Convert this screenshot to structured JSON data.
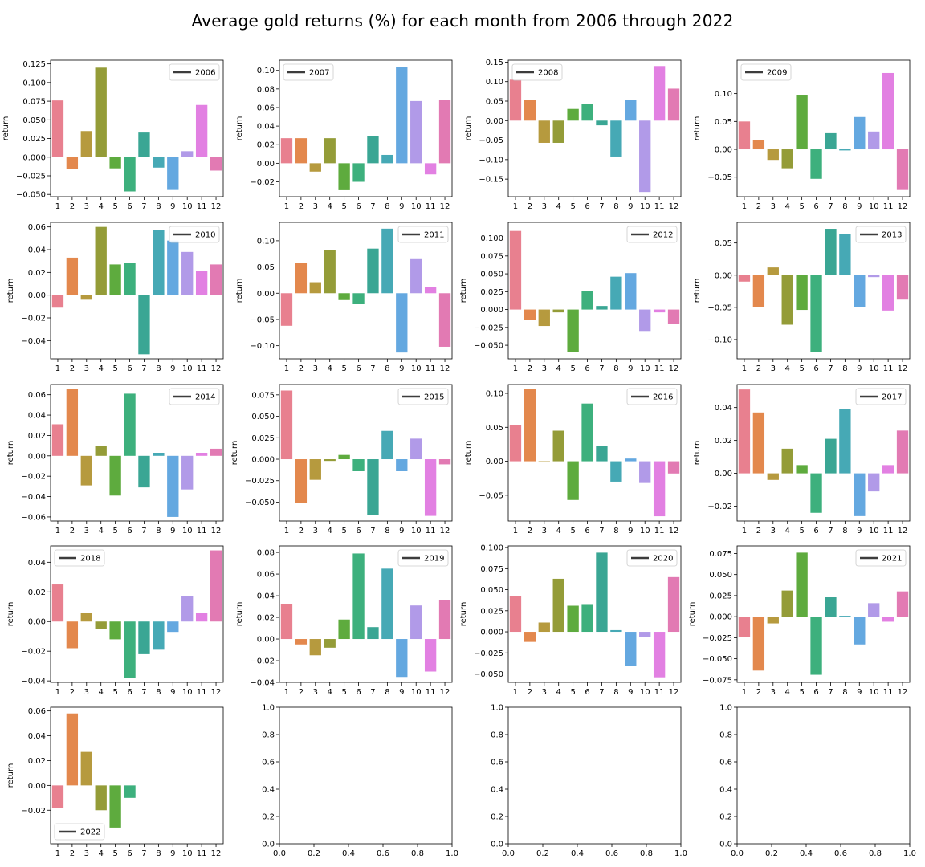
{
  "title": "Average gold returns (%) for each month from 2006 through 2022",
  "ylabel": "return",
  "months": [
    "1",
    "2",
    "3",
    "4",
    "5",
    "6",
    "7",
    "8",
    "9",
    "10",
    "11",
    "12"
  ],
  "colors": [
    "#e8808f",
    "#e3884d",
    "#b69a3e",
    "#949c38",
    "#5eab3e",
    "#3db07d",
    "#3aa694",
    "#46a9b5",
    "#64a8e0",
    "#b19ae8",
    "#e280e2",
    "#e27ab3"
  ],
  "chart_data": [
    {
      "type": "bar",
      "legend": "2006",
      "legend_loc": "upper right",
      "ylim": [
        -0.053,
        0.13
      ],
      "yticks": [
        -0.05,
        -0.025,
        0,
        0.025,
        0.05,
        0.075,
        0.1,
        0.125
      ],
      "ytick_labels": [
        "−0.050",
        "−0.025",
        "0.000",
        "0.025",
        "0.050",
        "0.075",
        "0.100",
        "0.125"
      ],
      "values": [
        0.076,
        -0.016,
        0.035,
        0.12,
        -0.015,
        -0.046,
        0.033,
        -0.014,
        -0.044,
        0.008,
        0.07,
        -0.018
      ]
    },
    {
      "type": "bar",
      "legend": "2007",
      "legend_loc": "upper left",
      "ylim": [
        -0.036,
        0.111
      ],
      "yticks": [
        -0.02,
        0,
        0.02,
        0.04,
        0.06,
        0.08,
        0.1
      ],
      "ytick_labels": [
        "−0.02",
        "0.00",
        "0.02",
        "0.04",
        "0.06",
        "0.08",
        "0.10"
      ],
      "values": [
        0.027,
        0.027,
        -0.009,
        0.027,
        -0.029,
        -0.02,
        0.029,
        0.009,
        0.104,
        0.067,
        -0.012,
        0.068
      ]
    },
    {
      "type": "bar",
      "legend": "2008",
      "legend_loc": "upper left",
      "ylim": [
        -0.195,
        0.155
      ],
      "yticks": [
        -0.15,
        -0.1,
        -0.05,
        0,
        0.05,
        0.1,
        0.15
      ],
      "ytick_labels": [
        "−0.15",
        "−0.10",
        "−0.05",
        "0.00",
        "0.05",
        "0.10",
        "0.15"
      ],
      "values": [
        0.105,
        0.053,
        -0.057,
        -0.057,
        0.03,
        0.042,
        -0.012,
        -0.092,
        0.053,
        -0.183,
        0.14,
        0.082
      ]
    },
    {
      "type": "bar",
      "legend": "2009",
      "legend_loc": "upper left",
      "ylim": [
        -0.085,
        0.16
      ],
      "yticks": [
        -0.05,
        0,
        0.05,
        0.1
      ],
      "ytick_labels": [
        "−0.05",
        "0.00",
        "0.05",
        "0.10"
      ],
      "values": [
        0.05,
        0.016,
        -0.019,
        -0.034,
        0.098,
        -0.053,
        0.029,
        -0.002,
        0.058,
        0.032,
        0.137,
        -0.073
      ]
    },
    {
      "type": "bar",
      "legend": "2010",
      "legend_loc": "upper right",
      "ylim": [
        -0.056,
        0.064
      ],
      "yticks": [
        -0.04,
        -0.02,
        0,
        0.02,
        0.04,
        0.06
      ],
      "ytick_labels": [
        "−0.04",
        "−0.02",
        "0.00",
        "0.02",
        "0.04",
        "0.06"
      ],
      "values": [
        -0.011,
        0.033,
        -0.004,
        0.06,
        0.027,
        0.028,
        -0.052,
        0.057,
        0.048,
        0.038,
        0.021,
        0.027
      ]
    },
    {
      "type": "bar",
      "legend": "2011",
      "legend_loc": "upper right",
      "ylim": [
        -0.125,
        0.135
      ],
      "yticks": [
        -0.1,
        -0.05,
        0,
        0.05,
        0.1
      ],
      "ytick_labels": [
        "−0.10",
        "−0.05",
        "0.00",
        "0.05",
        "0.10"
      ],
      "values": [
        -0.062,
        0.058,
        0.021,
        0.082,
        -0.013,
        -0.021,
        0.085,
        0.123,
        -0.113,
        0.065,
        0.012,
        -0.102
      ]
    },
    {
      "type": "bar",
      "legend": "2012",
      "legend_loc": "upper right",
      "ylim": [
        -0.069,
        0.122
      ],
      "yticks": [
        -0.05,
        -0.025,
        0,
        0.025,
        0.05,
        0.075,
        0.1
      ],
      "ytick_labels": [
        "−0.050",
        "−0.025",
        "0.000",
        "0.025",
        "0.050",
        "0.075",
        "0.100"
      ],
      "values": [
        0.11,
        -0.015,
        -0.023,
        -0.004,
        -0.06,
        0.026,
        0.005,
        0.046,
        0.051,
        -0.03,
        -0.004,
        -0.02
      ]
    },
    {
      "type": "bar",
      "legend": "2013",
      "legend_loc": "upper right",
      "ylim": [
        -0.13,
        0.082
      ],
      "yticks": [
        -0.1,
        -0.05,
        0,
        0.05
      ],
      "ytick_labels": [
        "−0.10",
        "−0.05",
        "0.00",
        "0.05"
      ],
      "values": [
        -0.01,
        -0.05,
        0.012,
        -0.077,
        -0.054,
        -0.12,
        0.072,
        0.064,
        -0.05,
        -0.003,
        -0.055,
        -0.038
      ]
    },
    {
      "type": "bar",
      "legend": "2014",
      "legend_loc": "upper right",
      "ylim": [
        -0.064,
        0.07
      ],
      "yticks": [
        -0.06,
        -0.04,
        -0.02,
        0,
        0.02,
        0.04,
        0.06
      ],
      "ytick_labels": [
        "−0.06",
        "−0.04",
        "−0.02",
        "0.00",
        "0.02",
        "0.04",
        "0.06"
      ],
      "values": [
        0.031,
        0.066,
        -0.029,
        0.01,
        -0.039,
        0.061,
        -0.031,
        0.003,
        -0.06,
        -0.033,
        0.003,
        0.007
      ]
    },
    {
      "type": "bar",
      "legend": "2015",
      "legend_loc": "upper right",
      "ylim": [
        -0.072,
        0.087
      ],
      "yticks": [
        -0.05,
        -0.025,
        0,
        0.025,
        0.05,
        0.075
      ],
      "ytick_labels": [
        "−0.050",
        "−0.025",
        "0.000",
        "0.025",
        "0.050",
        "0.075"
      ],
      "values": [
        0.08,
        -0.051,
        -0.024,
        -0.002,
        0.005,
        -0.014,
        -0.065,
        0.033,
        -0.014,
        0.024,
        -0.066,
        -0.006
      ]
    },
    {
      "type": "bar",
      "legend": "2016",
      "legend_loc": "upper right",
      "ylim": [
        -0.088,
        0.113
      ],
      "yticks": [
        -0.05,
        0,
        0.05,
        0.1
      ],
      "ytick_labels": [
        "−0.05",
        "0.00",
        "0.05",
        "0.10"
      ],
      "values": [
        0.053,
        0.106,
        0,
        0.045,
        -0.057,
        0.085,
        0.023,
        -0.03,
        0.004,
        -0.032,
        -0.081,
        -0.018
      ]
    },
    {
      "type": "bar",
      "legend": "2017",
      "legend_loc": "upper right",
      "ylim": [
        -0.029,
        0.054
      ],
      "yticks": [
        -0.02,
        0,
        0.02,
        0.04
      ],
      "ytick_labels": [
        "−0.02",
        "0.00",
        "0.02",
        "0.04"
      ],
      "values": [
        0.051,
        0.037,
        -0.004,
        0.015,
        0.005,
        -0.024,
        0.021,
        0.039,
        -0.026,
        -0.011,
        0.005,
        0.026
      ]
    },
    {
      "type": "bar",
      "legend": "2018",
      "legend_loc": "upper left",
      "ylim": [
        -0.041,
        0.051
      ],
      "yticks": [
        -0.04,
        -0.02,
        0,
        0.02,
        0.04
      ],
      "ytick_labels": [
        "−0.04",
        "−0.02",
        "0.00",
        "0.02",
        "0.04"
      ],
      "values": [
        0.025,
        -0.018,
        0.006,
        -0.005,
        -0.012,
        -0.038,
        -0.022,
        -0.019,
        -0.007,
        0.017,
        0.006,
        0.048
      ]
    },
    {
      "type": "bar",
      "legend": "2019",
      "legend_loc": "upper right",
      "ylim": [
        -0.04,
        0.086
      ],
      "yticks": [
        -0.04,
        -0.02,
        0,
        0.02,
        0.04,
        0.06,
        0.08
      ],
      "ytick_labels": [
        "−0.04",
        "−0.02",
        "0.00",
        "0.02",
        "0.04",
        "0.06",
        "0.08"
      ],
      "values": [
        0.032,
        -0.005,
        -0.015,
        -0.008,
        0.018,
        0.079,
        0.011,
        0.065,
        -0.035,
        0.031,
        -0.03,
        0.036
      ]
    },
    {
      "type": "bar",
      "legend": "2020",
      "legend_loc": "upper right",
      "ylim": [
        -0.06,
        0.102
      ],
      "yticks": [
        -0.05,
        -0.025,
        0,
        0.025,
        0.05,
        0.075,
        0.1
      ],
      "ytick_labels": [
        "−0.050",
        "−0.025",
        "0.000",
        "0.025",
        "0.050",
        "0.075",
        "0.100"
      ],
      "values": [
        0.042,
        -0.012,
        0.011,
        0.063,
        0.031,
        0.032,
        0.094,
        0.002,
        -0.04,
        -0.006,
        -0.054,
        0.065
      ]
    },
    {
      "type": "bar",
      "legend": "2021",
      "legend_loc": "upper right",
      "ylim": [
        -0.078,
        0.084
      ],
      "yticks": [
        -0.075,
        -0.05,
        -0.025,
        0,
        0.025,
        0.05,
        0.075
      ],
      "ytick_labels": [
        "−0.075",
        "−0.050",
        "−0.025",
        "0.000",
        "0.025",
        "0.050",
        "0.075"
      ],
      "values": [
        -0.024,
        -0.064,
        -0.008,
        0.031,
        0.076,
        -0.069,
        0.023,
        0.001,
        -0.033,
        0.016,
        -0.006,
        0.03
      ]
    },
    {
      "type": "bar",
      "legend": "2022",
      "legend_loc": "lower left",
      "ylim": [
        -0.047,
        0.063
      ],
      "yticks": [
        -0.02,
        0,
        0.02,
        0.04,
        0.06
      ],
      "ytick_labels": [
        "−0.02",
        "0.00",
        "0.02",
        "0.04",
        "0.06"
      ],
      "values": [
        -0.018,
        0.058,
        0.027,
        -0.02,
        -0.034,
        -0.01,
        null,
        null,
        null,
        null,
        null,
        null
      ]
    },
    {
      "type": "empty",
      "xlim": [
        0,
        1
      ],
      "ylim": [
        0,
        1
      ],
      "ticks": [
        "0.0",
        "0.2",
        "0.4",
        "0.6",
        "0.8",
        "1.0"
      ]
    },
    {
      "type": "empty",
      "xlim": [
        0,
        1
      ],
      "ylim": [
        0,
        1
      ],
      "ticks": [
        "0.0",
        "0.2",
        "0.4",
        "0.6",
        "0.8",
        "1.0"
      ]
    },
    {
      "type": "empty",
      "xlim": [
        0,
        1
      ],
      "ylim": [
        0,
        1
      ],
      "ticks": [
        "0.0",
        "0.2",
        "0.4",
        "0.6",
        "0.8",
        "1.0"
      ]
    }
  ]
}
